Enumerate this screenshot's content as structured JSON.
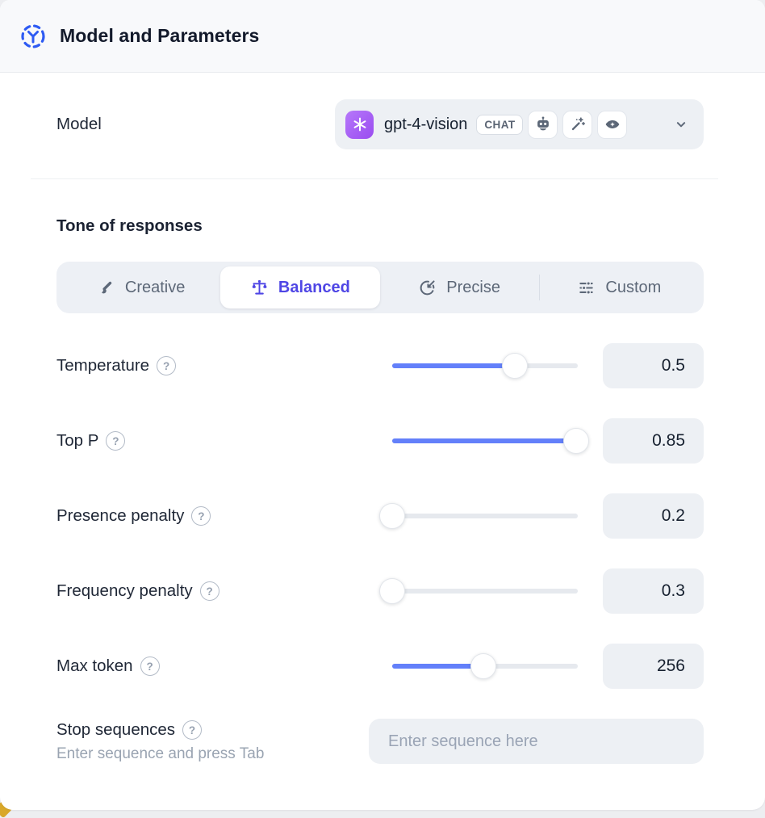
{
  "header": {
    "title": "Model and Parameters",
    "icon": "model-dashed-circle-icon"
  },
  "model_row": {
    "label": "Model",
    "selected_model": "gpt-4-vision",
    "provider_icon": "openai-logo",
    "badge": "CHAT",
    "capability_icons": [
      "robot-icon",
      "magic-wand-icon",
      "vision-eye-icon"
    ],
    "chevron_icon": "chevron-down-icon"
  },
  "tone": {
    "heading": "Tone of responses",
    "selected": "Balanced",
    "options": [
      {
        "label": "Creative",
        "icon": "paintbrush-icon",
        "selected": false
      },
      {
        "label": "Balanced",
        "icon": "balance-scale-icon",
        "selected": true
      },
      {
        "label": "Precise",
        "icon": "target-icon",
        "selected": false
      },
      {
        "label": "Custom",
        "icon": "sliders-icon",
        "selected": false
      }
    ]
  },
  "parameters": [
    {
      "label": "Temperature",
      "value": "0.5",
      "fill_percent": 66
    },
    {
      "label": "Top P",
      "value": "0.85",
      "fill_percent": 99
    },
    {
      "label": "Presence penalty",
      "value": "0.2",
      "fill_percent": 0
    },
    {
      "label": "Frequency penalty",
      "value": "0.3",
      "fill_percent": 0
    },
    {
      "label": "Max token",
      "value": "256",
      "fill_percent": 49
    }
  ],
  "help_icon_glyph": "?",
  "stop_sequences": {
    "label": "Stop sequences",
    "hint": "Enter sequence and press Tab",
    "placeholder": "Enter sequence here"
  },
  "colors": {
    "accent_blue_slider": "#6380fa",
    "accent_indigo_selected": "#4f46e5",
    "header_icon_blue": "#2e5bf3",
    "provider_purple": "#9a4cf0",
    "control_background": "#edf0f4",
    "background_accent_yellow": "#d9a82a"
  }
}
